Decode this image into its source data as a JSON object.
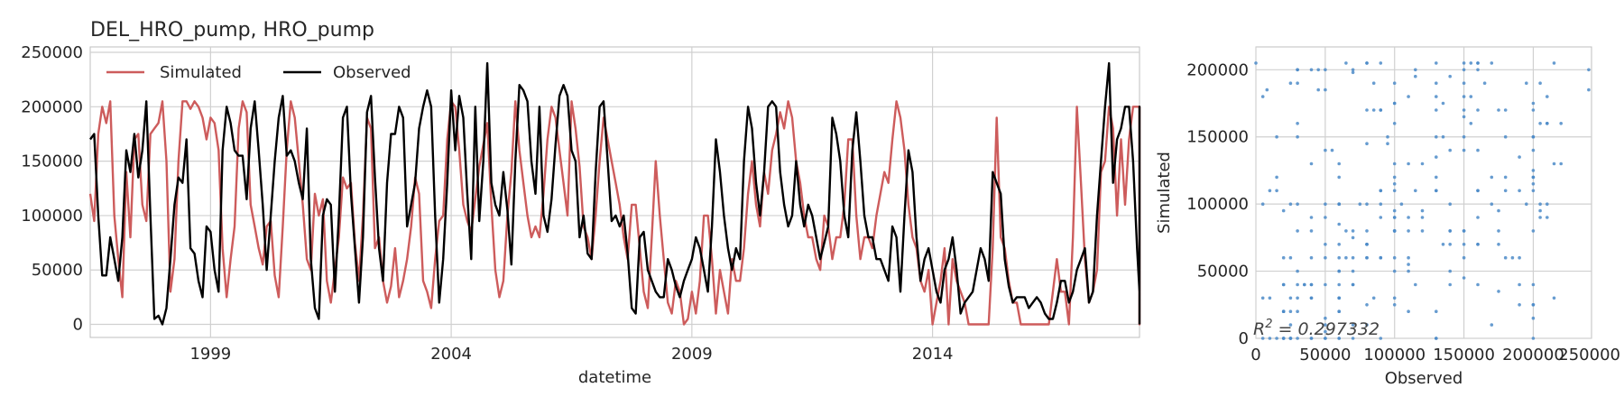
{
  "colors": {
    "simulated": "#cd5c5c",
    "observed": "#000000",
    "scatter": "#4c8bc8",
    "grid": "#d0d0d0",
    "spine": "#bfbfbf"
  },
  "chart_data": [
    {
      "type": "line",
      "title": "DEL_HRO_pump, HRO_pump",
      "xlabel": "datetime",
      "ylabel": "",
      "xlim": [
        1996.5,
        2018.3
      ],
      "ylim": [
        -12000,
        255000
      ],
      "xticks": [
        1999,
        2004,
        2009,
        2014
      ],
      "xtick_labels": [
        "1999",
        "2004",
        "2009",
        "2014"
      ],
      "yticks": [
        0,
        50000,
        100000,
        150000,
        200000,
        250000
      ],
      "ytick_labels": [
        "0",
        "50000",
        "100000",
        "150000",
        "200000",
        "250000"
      ],
      "grid": true,
      "legend": "top-left",
      "x_start": 1996.5,
      "x_step": 0.083333,
      "series": [
        {
          "name": "Simulated",
          "values": [
            120000,
            95000,
            175000,
            200000,
            185000,
            205000,
            100000,
            60000,
            25000,
            140000,
            80000,
            170000,
            175000,
            110000,
            95000,
            175000,
            180000,
            185000,
            205000,
            150000,
            30000,
            60000,
            150000,
            205000,
            205000,
            198000,
            205000,
            200000,
            190000,
            170000,
            190000,
            185000,
            160000,
            70000,
            25000,
            60000,
            90000,
            180000,
            205000,
            195000,
            110000,
            90000,
            70000,
            55000,
            90000,
            95000,
            45000,
            25000,
            90000,
            160000,
            205000,
            190000,
            150000,
            110000,
            60000,
            50000,
            120000,
            100000,
            115000,
            40000,
            20000,
            50000,
            80000,
            135000,
            125000,
            130000,
            75000,
            40000,
            100000,
            190000,
            180000,
            70000,
            80000,
            40000,
            20000,
            35000,
            70000,
            25000,
            40000,
            60000,
            90000,
            135000,
            120000,
            40000,
            30000,
            15000,
            60000,
            95000,
            100000,
            170000,
            205000,
            200000,
            160000,
            110000,
            95000,
            85000,
            115000,
            145000,
            165000,
            185000,
            110000,
            50000,
            25000,
            40000,
            100000,
            140000,
            205000,
            160000,
            130000,
            100000,
            80000,
            90000,
            80000,
            120000,
            170000,
            200000,
            190000,
            160000,
            130000,
            100000,
            205000,
            180000,
            145000,
            90000,
            80000,
            60000,
            100000,
            150000,
            190000,
            170000,
            150000,
            130000,
            110000,
            80000,
            60000,
            110000,
            110000,
            70000,
            30000,
            15000,
            80000,
            150000,
            100000,
            60000,
            20000,
            10000,
            40000,
            30000,
            0,
            5000,
            30000,
            10000,
            40000,
            100000,
            100000,
            60000,
            10000,
            50000,
            30000,
            10000,
            60000,
            40000,
            40000,
            70000,
            120000,
            150000,
            110000,
            90000,
            140000,
            120000,
            160000,
            175000,
            195000,
            180000,
            205000,
            190000,
            150000,
            130000,
            100000,
            80000,
            80000,
            60000,
            50000,
            100000,
            90000,
            60000,
            80000,
            80000,
            110000,
            170000,
            170000,
            100000,
            60000,
            80000,
            80000,
            70000,
            100000,
            120000,
            140000,
            130000,
            170000,
            205000,
            190000,
            160000,
            110000,
            80000,
            70000,
            40000,
            30000,
            50000,
            0,
            20000,
            40000,
            70000,
            0,
            60000,
            40000,
            30000,
            20000,
            0,
            0,
            0,
            0,
            0,
            0,
            70000,
            190000,
            80000,
            70000,
            40000,
            20000,
            20000,
            0,
            0,
            0,
            0,
            0,
            0,
            0,
            0,
            30000,
            60000,
            30000,
            30000,
            0,
            80000,
            200000,
            130000,
            60000,
            20000,
            30000,
            50000,
            140000,
            150000,
            200000,
            180000,
            100000,
            170000,
            110000,
            170000,
            200000,
            200000,
            200000,
            200000,
            0,
            0,
            0,
            0,
            140000,
            40000,
            120000,
            110000,
            20000,
            90000,
            40000,
            10000
          ]
        },
        {
          "name": "Observed",
          "values": [
            170000,
            175000,
            100000,
            45000,
            45000,
            80000,
            60000,
            40000,
            80000,
            160000,
            140000,
            175000,
            135000,
            160000,
            205000,
            100000,
            5000,
            8000,
            0,
            15000,
            60000,
            110000,
            135000,
            130000,
            170000,
            70000,
            65000,
            40000,
            25000,
            90000,
            85000,
            50000,
            30000,
            160000,
            200000,
            185000,
            160000,
            155000,
            155000,
            115000,
            180000,
            205000,
            160000,
            110000,
            50000,
            100000,
            150000,
            190000,
            210000,
            155000,
            160000,
            150000,
            130000,
            115000,
            180000,
            60000,
            15000,
            5000,
            100000,
            115000,
            110000,
            30000,
            100000,
            190000,
            200000,
            120000,
            70000,
            20000,
            80000,
            195000,
            210000,
            135000,
            70000,
            40000,
            130000,
            175000,
            175000,
            200000,
            190000,
            90000,
            110000,
            130000,
            180000,
            200000,
            215000,
            200000,
            100000,
            20000,
            60000,
            130000,
            215000,
            160000,
            210000,
            190000,
            120000,
            60000,
            200000,
            95000,
            150000,
            240000,
            130000,
            110000,
            100000,
            140000,
            105000,
            55000,
            150000,
            220000,
            215000,
            205000,
            150000,
            120000,
            200000,
            100000,
            85000,
            115000,
            165000,
            210000,
            220000,
            210000,
            160000,
            150000,
            80000,
            100000,
            65000,
            60000,
            140000,
            200000,
            205000,
            150000,
            95000,
            100000,
            90000,
            100000,
            65000,
            15000,
            10000,
            80000,
            85000,
            50000,
            40000,
            30000,
            25000,
            25000,
            60000,
            50000,
            35000,
            25000,
            40000,
            50000,
            60000,
            80000,
            70000,
            50000,
            30000,
            90000,
            170000,
            140000,
            100000,
            70000,
            50000,
            70000,
            60000,
            150000,
            200000,
            180000,
            130000,
            100000,
            140000,
            200000,
            205000,
            200000,
            140000,
            110000,
            90000,
            100000,
            150000,
            110000,
            90000,
            110000,
            100000,
            80000,
            60000,
            75000,
            90000,
            190000,
            175000,
            150000,
            100000,
            80000,
            160000,
            195000,
            150000,
            100000,
            80000,
            80000,
            60000,
            60000,
            50000,
            40000,
            90000,
            80000,
            30000,
            100000,
            160000,
            140000,
            80000,
            40000,
            60000,
            70000,
            50000,
            30000,
            20000,
            50000,
            60000,
            80000,
            50000,
            10000,
            20000,
            25000,
            30000,
            50000,
            70000,
            60000,
            40000,
            140000,
            130000,
            120000,
            60000,
            35000,
            20000,
            25000,
            25000,
            25000,
            15000,
            20000,
            25000,
            20000,
            10000,
            5000,
            5000,
            20000,
            40000,
            40000,
            20000,
            30000,
            50000,
            60000,
            70000,
            20000,
            30000,
            100000,
            150000,
            200000,
            240000,
            130000,
            170000,
            180000,
            200000,
            200000,
            150000,
            70000,
            30000,
            30000,
            90000,
            130000,
            130000,
            200000,
            200000,
            160000,
            130000,
            90000,
            60000,
            40000,
            30000,
            25000,
            25000,
            0
          ]
        }
      ]
    },
    {
      "type": "scatter",
      "xlabel": "Observed",
      "ylabel": "Simulated",
      "xlim": [
        0,
        242000
      ],
      "ylim": [
        0,
        217000
      ],
      "xticks": [
        0,
        50000,
        100000,
        150000,
        200000,
        250000
      ],
      "xtick_labels": [
        "0",
        "50000",
        "100000",
        "150000",
        "200000",
        "250000"
      ],
      "yticks": [
        0,
        50000,
        100000,
        150000,
        200000
      ],
      "ytick_labels": [
        "0",
        "50000",
        "100000",
        "150000",
        "200000"
      ],
      "grid": true,
      "annotation": "R² = 0.297332",
      "annotation_base": "R",
      "annotation_sup": "2",
      "annotation_rest": " = 0.297332"
    }
  ]
}
